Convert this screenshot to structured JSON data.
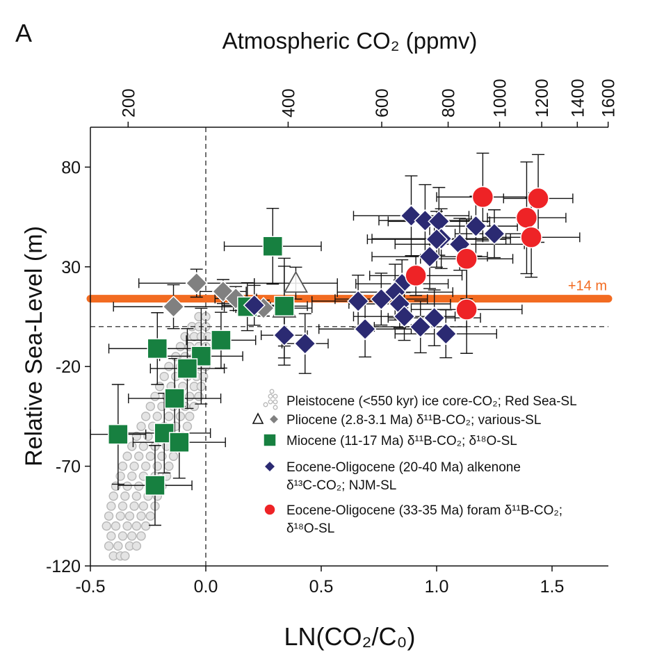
{
  "chart_data": {
    "type": "scatter",
    "panel_label": "A",
    "top_axis_label": "Atmospheric CO₂ (ppmv)",
    "xlabel": "LN(CO₂/C₀)",
    "ylabel": "Relative Sea-Level (m)",
    "xlim": [
      -0.5,
      1.744
    ],
    "ylim": [
      -120,
      100
    ],
    "x_ticks": [
      -0.5,
      0.0,
      0.5,
      1.0,
      1.5
    ],
    "x_tick_labels": [
      "-0.5",
      "0.0",
      "0.5",
      "1.0",
      "1.5"
    ],
    "y_ticks": [
      80,
      30,
      -20,
      -70,
      -120
    ],
    "y_tick_labels": [
      "80",
      "30",
      "-20",
      "-70",
      "-120"
    ],
    "top_ticks_ppmv": [
      200,
      400,
      600,
      800,
      1000,
      1200,
      1400,
      1600
    ],
    "top_tick_labels": [
      "200",
      "400",
      "600",
      "800",
      "1000",
      "1200",
      "1400",
      "1600"
    ],
    "reference_co2_ppmv": 280,
    "reference_line": {
      "y": 14,
      "label": "+14 m",
      "color": "#f26b21"
    },
    "zero_lines": {
      "x": 0,
      "y": 0,
      "style": "dashed"
    },
    "grid": false,
    "legend_placement": "bottom-right",
    "legend": [
      {
        "lines": [
          "Pleistocene (<550 kyr) ice core-CO₂; Red Sea-SL"
        ],
        "marker": "open-circles",
        "color": "#b8b8b8"
      },
      {
        "lines": [
          "Pliocene (2.8-3.1 Ma) δ¹¹B-CO₂; various-SL"
        ],
        "marker": "triangle-and-diamond",
        "color": "#808080"
      },
      {
        "lines": [
          "Miocene (11-17 Ma) δ¹¹B-CO₂; δ¹⁸O-SL"
        ],
        "marker": "square",
        "color": "#178040"
      },
      {
        "lines": [
          "Eocene-Oligocene (20-40 Ma) alkenone",
          "δ¹³C-CO₂; NJM-SL"
        ],
        "marker": "diamond",
        "color": "#2b2a72"
      },
      {
        "lines": [
          "Eocene-Oligocene (33-35 Ma) foram δ¹¹B-CO₂;",
          "δ¹⁸O-SL"
        ],
        "marker": "circle",
        "color": "#ee2326"
      }
    ],
    "series": [
      {
        "id": "pleistocene",
        "marker": "open-circle",
        "color": "#b8b8b8",
        "points": [
          [
            -0.4,
            -115
          ],
          [
            -0.37,
            -115
          ],
          [
            -0.35,
            -115
          ],
          [
            -0.42,
            -110
          ],
          [
            -0.38,
            -110
          ],
          [
            -0.33,
            -110
          ],
          [
            -0.3,
            -110
          ],
          [
            -0.41,
            -105
          ],
          [
            -0.36,
            -105
          ],
          [
            -0.32,
            -105
          ],
          [
            -0.28,
            -105
          ],
          [
            -0.43,
            -100
          ],
          [
            -0.39,
            -100
          ],
          [
            -0.34,
            -100
          ],
          [
            -0.3,
            -100
          ],
          [
            -0.26,
            -100
          ],
          [
            -0.42,
            -95
          ],
          [
            -0.37,
            -95
          ],
          [
            -0.33,
            -95
          ],
          [
            -0.28,
            -95
          ],
          [
            -0.24,
            -95
          ],
          [
            -0.41,
            -90
          ],
          [
            -0.36,
            -90
          ],
          [
            -0.31,
            -90
          ],
          [
            -0.27,
            -90
          ],
          [
            -0.22,
            -90
          ],
          [
            -0.4,
            -85
          ],
          [
            -0.35,
            -85
          ],
          [
            -0.3,
            -85
          ],
          [
            -0.25,
            -85
          ],
          [
            -0.21,
            -85
          ],
          [
            -0.39,
            -80
          ],
          [
            -0.34,
            -80
          ],
          [
            -0.29,
            -80
          ],
          [
            -0.24,
            -80
          ],
          [
            -0.19,
            -80
          ],
          [
            -0.37,
            -75
          ],
          [
            -0.32,
            -75
          ],
          [
            -0.27,
            -75
          ],
          [
            -0.22,
            -75
          ],
          [
            -0.17,
            -75
          ],
          [
            -0.36,
            -70
          ],
          [
            -0.31,
            -70
          ],
          [
            -0.26,
            -70
          ],
          [
            -0.21,
            -70
          ],
          [
            -0.16,
            -70
          ],
          [
            -0.34,
            -65
          ],
          [
            -0.29,
            -65
          ],
          [
            -0.24,
            -65
          ],
          [
            -0.19,
            -65
          ],
          [
            -0.14,
            -65
          ],
          [
            -0.32,
            -60
          ],
          [
            -0.27,
            -60
          ],
          [
            -0.22,
            -60
          ],
          [
            -0.17,
            -60
          ],
          [
            -0.12,
            -60
          ],
          [
            -0.3,
            -55
          ],
          [
            -0.25,
            -55
          ],
          [
            -0.2,
            -55
          ],
          [
            -0.15,
            -55
          ],
          [
            -0.1,
            -55
          ],
          [
            -0.28,
            -50
          ],
          [
            -0.23,
            -50
          ],
          [
            -0.18,
            -50
          ],
          [
            -0.13,
            -50
          ],
          [
            -0.08,
            -50
          ],
          [
            -0.26,
            -45
          ],
          [
            -0.21,
            -45
          ],
          [
            -0.16,
            -45
          ],
          [
            -0.11,
            -45
          ],
          [
            -0.07,
            -45
          ],
          [
            -0.24,
            -40
          ],
          [
            -0.19,
            -40
          ],
          [
            -0.14,
            -40
          ],
          [
            -0.09,
            -40
          ],
          [
            -0.05,
            -40
          ],
          [
            -0.22,
            -35
          ],
          [
            -0.17,
            -35
          ],
          [
            -0.12,
            -35
          ],
          [
            -0.07,
            -35
          ],
          [
            -0.03,
            -35
          ],
          [
            -0.2,
            -30
          ],
          [
            -0.15,
            -30
          ],
          [
            -0.1,
            -30
          ],
          [
            -0.05,
            -30
          ],
          [
            -0.02,
            -30
          ],
          [
            -0.18,
            -25
          ],
          [
            -0.13,
            -25
          ],
          [
            -0.08,
            -25
          ],
          [
            -0.04,
            -25
          ],
          [
            -0.01,
            -25
          ],
          [
            -0.16,
            -20
          ],
          [
            -0.11,
            -20
          ],
          [
            -0.07,
            -20
          ],
          [
            -0.03,
            -20
          ],
          [
            0.0,
            -20
          ],
          [
            -0.13,
            -15
          ],
          [
            -0.09,
            -15
          ],
          [
            -0.05,
            -15
          ],
          [
            -0.01,
            -15
          ],
          [
            -0.11,
            -10
          ],
          [
            -0.07,
            -10
          ],
          [
            -0.03,
            -10
          ],
          [
            0.0,
            -10
          ],
          [
            -0.09,
            -5
          ],
          [
            -0.05,
            -5
          ],
          [
            -0.02,
            -5
          ],
          [
            0.01,
            -5
          ],
          [
            -0.06,
            0
          ],
          [
            -0.03,
            0
          ],
          [
            0.0,
            0
          ],
          [
            -0.03,
            5
          ],
          [
            0.0,
            5
          ]
        ]
      },
      {
        "id": "pliocene-triangle",
        "marker": "open-triangle",
        "color": "#555555",
        "points": [
          {
            "x": 0.39,
            "y": 21.8,
            "xerr": 0.18,
            "yerr": 8
          },
          {
            "x": 0.34,
            "y": 9.3,
            "xerr": 0.12,
            "yerr": 25
          }
        ]
      },
      {
        "id": "pliocene-diamond",
        "marker": "diamond",
        "color": "#808080",
        "points": [
          {
            "x": -0.04,
            "y": 21.8,
            "xerr": 0.25,
            "yerr": 7
          },
          {
            "x": -0.14,
            "y": 10.0,
            "xerr": 0.26,
            "yerr": 11
          },
          {
            "x": 0.075,
            "y": 17.6,
            "xerr": 0.1,
            "yerr": 6
          },
          {
            "x": 0.13,
            "y": 14.1,
            "xerr": 0.09,
            "yerr": 6
          },
          {
            "x": 0.25,
            "y": 9.3,
            "xerr": 0.12,
            "yerr": 4
          }
        ]
      },
      {
        "id": "miocene",
        "marker": "square",
        "color": "#178040",
        "points": [
          {
            "x": 0.29,
            "y": 40.3,
            "xerr": 0.21,
            "yerr": 19
          },
          {
            "x": -0.21,
            "y": -11,
            "xerr": 0.21,
            "yerr": 18
          },
          {
            "x": 0.066,
            "y": -6.8,
            "xerr": 0.15,
            "yerr": 14
          },
          {
            "x": -0.02,
            "y": -14.8,
            "xerr": 0.18,
            "yerr": 24
          },
          {
            "x": -0.08,
            "y": -21,
            "xerr": 0.16,
            "yerr": 20
          },
          {
            "x": -0.135,
            "y": -36,
            "xerr": 0.2,
            "yerr": 20
          },
          {
            "x": -0.38,
            "y": -54,
            "xerr": 0.12,
            "yerr": 25
          },
          {
            "x": -0.18,
            "y": -53.4,
            "xerr": 0.2,
            "yerr": 20
          },
          {
            "x": -0.115,
            "y": -58,
            "xerr": 0.2,
            "yerr": 18
          },
          {
            "x": -0.22,
            "y": -79.6,
            "xerr": 0.16,
            "yerr": 20
          },
          {
            "x": 0.18,
            "y": 10,
            "xerr": 0.1,
            "yerr": 12
          },
          {
            "x": 0.34,
            "y": 10.3,
            "xerr": 0.1,
            "yerr": 20
          }
        ]
      },
      {
        "id": "eocene-alkenone",
        "marker": "diamond",
        "color": "#2b2a72",
        "points": [
          {
            "x": 0.89,
            "y": 55.6,
            "xerr": 0.25,
            "yerr": 20
          },
          {
            "x": 0.95,
            "y": 53.2,
            "xerr": 0.2,
            "yerr": 18
          },
          {
            "x": 1.01,
            "y": 52.8,
            "xerr": 0.22,
            "yerr": 17
          },
          {
            "x": 1.17,
            "y": 50.4,
            "xerr": 0.18,
            "yerr": 15
          },
          {
            "x": 1.25,
            "y": 46.6,
            "xerr": 0.17,
            "yerr": 12
          },
          {
            "x": 1.02,
            "y": 44.1,
            "xerr": 0.3,
            "yerr": 15
          },
          {
            "x": 1.0,
            "y": 43.8,
            "xerr": 0.3,
            "yerr": 14
          },
          {
            "x": 1.1,
            "y": 41.3,
            "xerr": 0.28,
            "yerr": 13
          },
          {
            "x": 0.97,
            "y": 35.1,
            "xerr": 0.25,
            "yerr": 16
          },
          {
            "x": 0.85,
            "y": 21.5,
            "xerr": 0.2,
            "yerr": 12
          },
          {
            "x": 0.82,
            "y": 17.3,
            "xerr": 0.25,
            "yerr": 14
          },
          {
            "x": 0.66,
            "y": 12.8,
            "xerr": 0.2,
            "yerr": 13
          },
          {
            "x": 0.76,
            "y": 13.8,
            "xerr": 0.2,
            "yerr": 13
          },
          {
            "x": 0.84,
            "y": 11.4,
            "xerr": 0.22,
            "yerr": 12
          },
          {
            "x": 0.86,
            "y": 5.1,
            "xerr": 0.22,
            "yerr": 12
          },
          {
            "x": 0.93,
            "y": -0.1,
            "xerr": 0.2,
            "yerr": 13
          },
          {
            "x": 0.99,
            "y": 4.4,
            "xerr": 0.2,
            "yerr": 14
          },
          {
            "x": 0.69,
            "y": -1.2,
            "xerr": 0.2,
            "yerr": 14
          },
          {
            "x": 1.04,
            "y": -3.6,
            "xerr": 0.22,
            "yerr": 12
          },
          {
            "x": 0.34,
            "y": -4.3,
            "xerr": 0.1,
            "yerr": 15
          },
          {
            "x": 0.43,
            "y": -8.5,
            "xerr": 0.1,
            "yerr": 15
          },
          {
            "x": 0.21,
            "y": 10.7,
            "xerr": 0.14,
            "yerr": 10
          }
        ]
      },
      {
        "id": "eocene-foram",
        "marker": "circle",
        "color": "#ee2326",
        "points": [
          {
            "x": 1.2,
            "y": 65,
            "xerr": 0.2,
            "yerr": 22
          },
          {
            "x": 1.44,
            "y": 64.3,
            "xerr": 0.15,
            "yerr": 22
          },
          {
            "x": 1.39,
            "y": 54.6,
            "xerr": 0.17,
            "yerr": 28
          },
          {
            "x": 1.41,
            "y": 44.8,
            "xerr": 0.21,
            "yerr": 20
          },
          {
            "x": 1.13,
            "y": 34,
            "xerr": 0.2,
            "yerr": 20
          },
          {
            "x": 0.91,
            "y": 25.6,
            "xerr": 0.2,
            "yerr": 10
          },
          {
            "x": 1.13,
            "y": 8.6,
            "xerr": 0.24,
            "yerr": 22
          }
        ]
      }
    ]
  }
}
